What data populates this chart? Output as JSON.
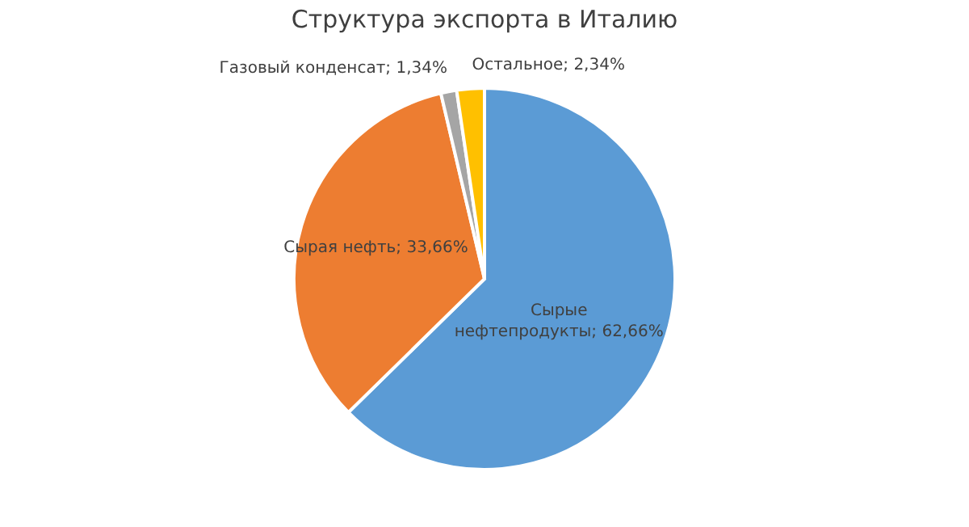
{
  "chart_data": {
    "type": "pie",
    "title": "Структура экспорта в Италию",
    "categories": [
      "Сырые нефтепродукты",
      "Сырая нефть",
      "Газовый конденсат",
      "Остальное"
    ],
    "values": [
      62.66,
      33.66,
      1.34,
      2.34
    ],
    "value_labels": [
      "62,66%",
      "33,66%",
      "1,34%",
      "2,34%"
    ],
    "colors": [
      "#5b9bd5",
      "#ed7d31",
      "#a5a5a5",
      "#ffc000"
    ],
    "legend": false
  }
}
